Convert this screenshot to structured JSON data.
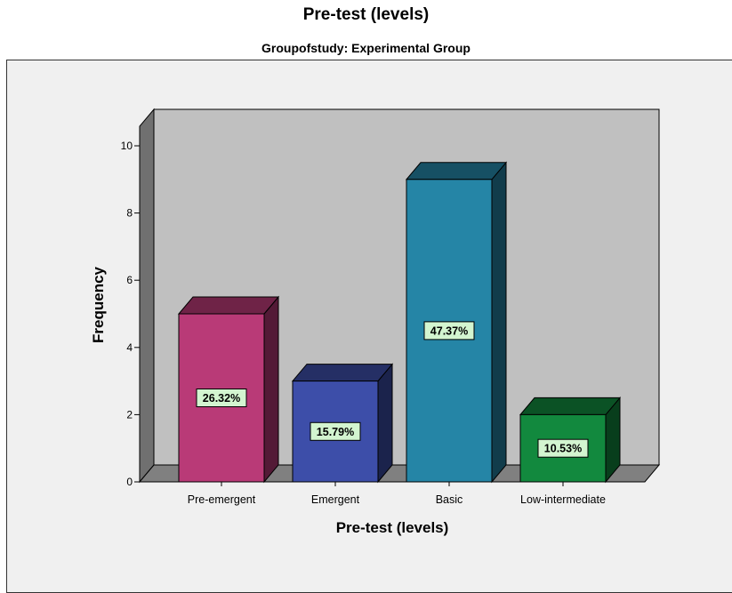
{
  "chart_data": {
    "type": "bar",
    "title": "Pre-test (levels)",
    "subtitle": "Groupofstudy: Experimental Group",
    "xlabel": "Pre-test (levels)",
    "ylabel": "Frequency",
    "ylim": [
      0,
      10
    ],
    "yticks": [
      "0",
      "2",
      "4",
      "6",
      "8",
      "10"
    ],
    "categories": [
      "Pre-emergent",
      "Emergent",
      "Basic",
      "Low-intermediate"
    ],
    "values": [
      5,
      3,
      9,
      2
    ],
    "data_labels": [
      "26.32%",
      "15.79%",
      "47.37%",
      "10.53%"
    ],
    "colors": [
      "#b93a77",
      "#3d4ea9",
      "#2585a6",
      "#12893e"
    ],
    "grid": false,
    "legend": "none"
  }
}
